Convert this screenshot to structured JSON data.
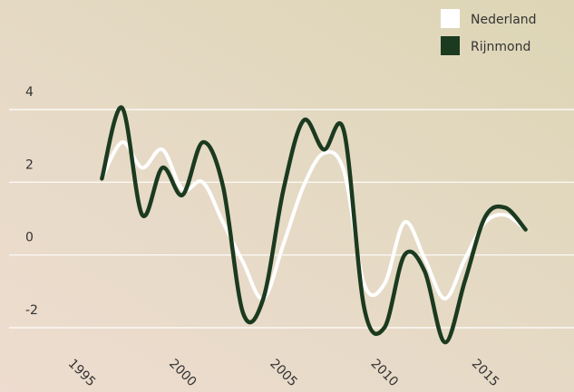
{
  "chart_data": {
    "type": "line",
    "x": [
      1996,
      1997,
      1998,
      1999,
      2000,
      2001,
      2002,
      2003,
      2004,
      2005,
      2006,
      2007,
      2008,
      2009,
      2010,
      2011,
      2012,
      2013,
      2014,
      2015,
      2016,
      2017
    ],
    "series": [
      {
        "name": "Nederland",
        "color": "#ffffff",
        "values": [
          2.1,
          3.1,
          2.4,
          2.9,
          1.8,
          2.0,
          0.9,
          -0.2,
          -1.2,
          0.3,
          1.9,
          2.8,
          2.3,
          -0.8,
          -0.8,
          0.9,
          -0.1,
          -1.2,
          -0.1,
          0.9,
          1.1,
          0.7
        ]
      },
      {
        "name": "Rijnmond",
        "color": "#1b3a1f",
        "values": [
          2.1,
          4.05,
          1.1,
          2.4,
          1.65,
          3.1,
          1.9,
          -1.6,
          -1.2,
          1.8,
          3.7,
          2.9,
          3.4,
          -1.45,
          -2.0,
          0.0,
          -0.45,
          -2.4,
          -0.7,
          1.05,
          1.3,
          0.7
        ]
      }
    ],
    "xlim": [
      1991.4,
      2019.4
    ],
    "xticks": [
      1995,
      2000,
      2005,
      2010,
      2015
    ],
    "ylim": [
      -2,
      4
    ],
    "yticks": [
      -2,
      0,
      2,
      4
    ],
    "grid": true
  }
}
